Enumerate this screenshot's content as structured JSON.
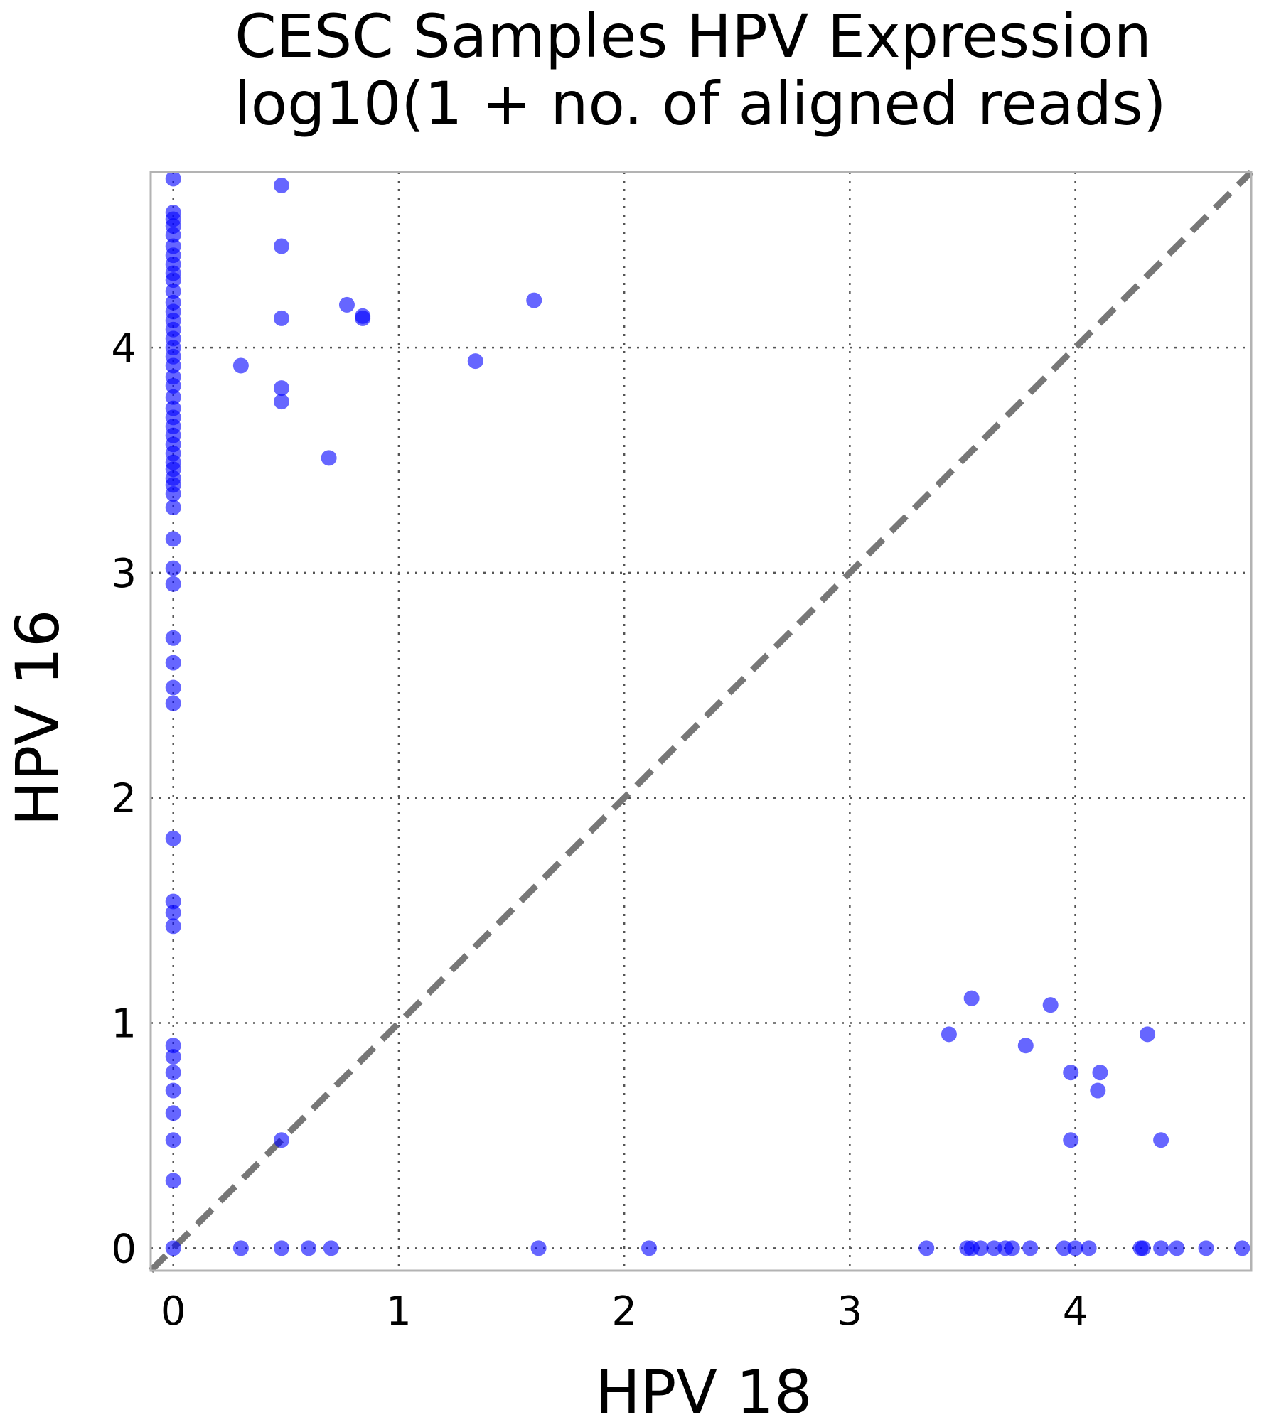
{
  "chart_data": {
    "type": "scatter",
    "title": "CESC Samples HPV Expression",
    "subtitle": "log10(1 + no. of aligned reads)",
    "xlabel": "HPV 18",
    "ylabel": "HPV 16",
    "xlim": [
      -0.1,
      4.78
    ],
    "ylim": [
      -0.1,
      4.78
    ],
    "xticks": [
      0,
      1,
      2,
      3,
      4
    ],
    "yticks": [
      0,
      1,
      2,
      3,
      4
    ],
    "grid": true,
    "reference_line": "y = x",
    "marker_color": "#0000ff",
    "marker_opacity": 0.6,
    "series": [
      {
        "points": [
          [
            0,
            4.75
          ],
          [
            0,
            4.6
          ],
          [
            0,
            4.57
          ],
          [
            0,
            4.54
          ],
          [
            0,
            4.5
          ],
          [
            0,
            4.45
          ],
          [
            0,
            4.41
          ],
          [
            0,
            4.37
          ],
          [
            0,
            4.33
          ],
          [
            0,
            4.3
          ],
          [
            0,
            4.25
          ],
          [
            0,
            4.2
          ],
          [
            0,
            4.16
          ],
          [
            0,
            4.12
          ],
          [
            0,
            4.08
          ],
          [
            0,
            4.04
          ],
          [
            0,
            4.0
          ],
          [
            0,
            3.96
          ],
          [
            0,
            3.92
          ],
          [
            0,
            3.87
          ],
          [
            0,
            3.83
          ],
          [
            0,
            3.78
          ],
          [
            0,
            3.73
          ],
          [
            0,
            3.69
          ],
          [
            0,
            3.65
          ],
          [
            0,
            3.61
          ],
          [
            0,
            3.57
          ],
          [
            0,
            3.53
          ],
          [
            0,
            3.49
          ],
          [
            0,
            3.46
          ],
          [
            0,
            3.42
          ],
          [
            0,
            3.39
          ],
          [
            0,
            3.35
          ],
          [
            0,
            3.29
          ],
          [
            0,
            3.15
          ],
          [
            0,
            3.02
          ],
          [
            0,
            2.95
          ],
          [
            0,
            2.71
          ],
          [
            0,
            2.6
          ],
          [
            0,
            2.49
          ],
          [
            0,
            2.42
          ],
          [
            0,
            1.82
          ],
          [
            0,
            1.54
          ],
          [
            0,
            1.49
          ],
          [
            0,
            1.43
          ],
          [
            0,
            0.9
          ],
          [
            0,
            0.85
          ],
          [
            0,
            0.78
          ],
          [
            0,
            0.7
          ],
          [
            0,
            0.6
          ],
          [
            0,
            0.48
          ],
          [
            0,
            0.3
          ],
          [
            0,
            0
          ],
          [
            0.48,
            4.72
          ],
          [
            0.48,
            4.45
          ],
          [
            0.48,
            4.13
          ],
          [
            0.48,
            3.82
          ],
          [
            0.48,
            3.76
          ],
          [
            0.3,
            3.92
          ],
          [
            0.69,
            3.51
          ],
          [
            0.77,
            4.19
          ],
          [
            0.84,
            4.13
          ],
          [
            0.84,
            4.14
          ],
          [
            1.34,
            3.94
          ],
          [
            1.6,
            4.21
          ],
          [
            0.48,
            0.48
          ],
          [
            0.3,
            0
          ],
          [
            0.48,
            0
          ],
          [
            0.6,
            0
          ],
          [
            0.7,
            0
          ],
          [
            1.62,
            0
          ],
          [
            2.11,
            0
          ],
          [
            3.34,
            0
          ],
          [
            3.52,
            0
          ],
          [
            3.54,
            0
          ],
          [
            3.58,
            0
          ],
          [
            3.64,
            0
          ],
          [
            3.69,
            0
          ],
          [
            3.72,
            0
          ],
          [
            3.8,
            0
          ],
          [
            3.95,
            0
          ],
          [
            4.0,
            0
          ],
          [
            4.06,
            0
          ],
          [
            4.29,
            0
          ],
          [
            4.3,
            0
          ],
          [
            4.38,
            0
          ],
          [
            4.45,
            0
          ],
          [
            4.58,
            0
          ],
          [
            4.74,
            0
          ],
          [
            3.44,
            0.95
          ],
          [
            3.54,
            1.11
          ],
          [
            3.78,
            0.9
          ],
          [
            3.89,
            1.08
          ],
          [
            3.98,
            0.78
          ],
          [
            3.98,
            0.48
          ],
          [
            4.1,
            0.7
          ],
          [
            4.11,
            0.78
          ],
          [
            4.32,
            0.95
          ],
          [
            4.38,
            0.48
          ]
        ]
      }
    ]
  }
}
